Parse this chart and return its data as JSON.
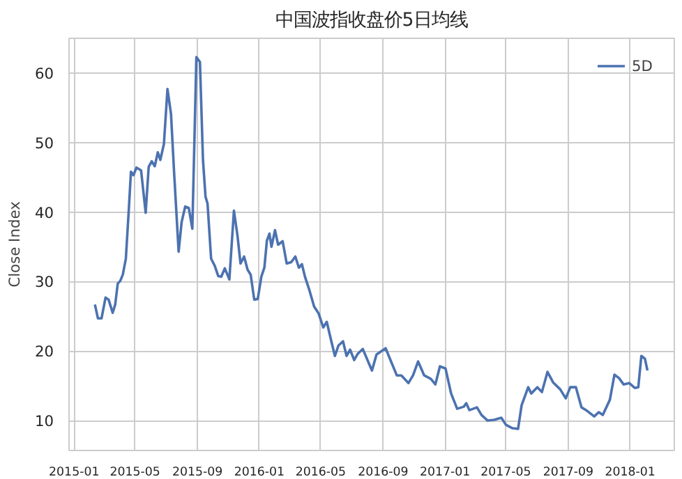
{
  "chart_data": {
    "type": "line",
    "title": "中国波指收盘价5日均线",
    "ylabel": "Close Index",
    "x": [
      "2015-02-11",
      "2015-02-17",
      "2015-02-24",
      "2015-03-04",
      "2015-03-10",
      "2015-03-18",
      "2015-03-23",
      "2015-03-28",
      "2015-04-02",
      "2015-04-07",
      "2015-04-13",
      "2015-04-19",
      "2015-04-23",
      "2015-04-28",
      "2015-05-04",
      "2015-05-13",
      "2015-05-22",
      "2015-05-28",
      "2015-06-03",
      "2015-06-09",
      "2015-06-15",
      "2015-06-20",
      "2015-06-27",
      "2015-07-04",
      "2015-07-11",
      "2015-07-17",
      "2015-07-26",
      "2015-08-01",
      "2015-08-08",
      "2015-08-15",
      "2015-08-22",
      "2015-08-30",
      "2015-09-06",
      "2015-09-12",
      "2015-09-17",
      "2015-09-21",
      "2015-09-28",
      "2015-10-05",
      "2015-10-12",
      "2015-10-18",
      "2015-10-25",
      "2015-11-03",
      "2015-11-12",
      "2015-11-19",
      "2015-11-25",
      "2015-12-02",
      "2015-12-09",
      "2015-12-15",
      "2015-12-22",
      "2015-12-29",
      "2016-01-05",
      "2016-01-11",
      "2016-01-16",
      "2016-01-21",
      "2016-01-25",
      "2016-02-01",
      "2016-02-07",
      "2016-02-16",
      "2016-02-24",
      "2016-03-04",
      "2016-03-12",
      "2016-03-19",
      "2016-03-25",
      "2016-03-31",
      "2016-04-09",
      "2016-04-18",
      "2016-04-27",
      "2016-05-06",
      "2016-05-13",
      "2016-05-22",
      "2016-05-29",
      "2016-06-05",
      "2016-06-14",
      "2016-06-21",
      "2016-06-28",
      "2016-07-06",
      "2016-07-13",
      "2016-07-23",
      "2016-08-10",
      "2016-08-19",
      "2016-09-06",
      "2016-09-15",
      "2016-09-28",
      "2016-10-07",
      "2016-10-21",
      "2016-10-30",
      "2016-11-09",
      "2016-11-21",
      "2016-12-04",
      "2016-12-13",
      "2016-12-22",
      "2017-01-02",
      "2017-01-13",
      "2017-01-25",
      "2017-02-07",
      "2017-02-12",
      "2017-02-18",
      "2017-03-05",
      "2017-03-14",
      "2017-03-26",
      "2017-04-08",
      "2017-04-22",
      "2017-05-01",
      "2017-05-14",
      "2017-05-25",
      "2017-06-01",
      "2017-06-14",
      "2017-06-20",
      "2017-07-02",
      "2017-07-11",
      "2017-07-22",
      "2017-08-02",
      "2017-08-16",
      "2017-08-27",
      "2017-09-05",
      "2017-09-16",
      "2017-09-27",
      "2017-10-08",
      "2017-10-22",
      "2017-10-31",
      "2017-11-08",
      "2017-11-22",
      "2017-12-01",
      "2017-12-10",
      "2017-12-19",
      "2017-12-30",
      "2018-01-10",
      "2018-01-17",
      "2018-01-23",
      "2018-01-30",
      "2018-02-04"
    ],
    "series": [
      {
        "name": "5D",
        "color": "#4c72b0",
        "values": [
          26.7,
          24.7,
          24.7,
          27.7,
          27.4,
          25.5,
          26.7,
          29.7,
          30.1,
          31.0,
          33.3,
          40.6,
          45.8,
          45.3,
          46.4,
          46.0,
          39.9,
          46.5,
          47.3,
          46.6,
          48.6,
          47.5,
          49.8,
          57.7,
          54.1,
          45.8,
          34.3,
          38.6,
          40.8,
          40.6,
          37.6,
          62.3,
          61.6,
          47.5,
          42.2,
          41.2,
          33.3,
          32.3,
          30.8,
          30.7,
          31.9,
          30.3,
          40.2,
          36.6,
          32.6,
          33.6,
          31.7,
          31.0,
          27.4,
          27.5,
          30.7,
          32.0,
          35.9,
          36.9,
          35.0,
          37.4,
          35.3,
          35.8,
          32.6,
          32.8,
          33.6,
          32.0,
          32.5,
          30.7,
          28.7,
          26.4,
          25.4,
          23.4,
          24.2,
          21.4,
          19.3,
          20.8,
          21.4,
          19.3,
          20.2,
          18.7,
          19.6,
          20.3,
          17.2,
          19.5,
          20.4,
          18.8,
          16.5,
          16.5,
          15.4,
          16.5,
          18.5,
          16.5,
          16.0,
          15.2,
          17.8,
          17.5,
          13.9,
          11.7,
          12.0,
          12.5,
          11.5,
          11.9,
          10.8,
          10.0,
          10.1,
          10.4,
          9.4,
          8.9,
          8.8,
          12.2,
          14.8,
          13.9,
          14.8,
          14.1,
          17.0,
          15.5,
          14.5,
          13.2,
          14.8,
          14.8,
          11.9,
          11.4,
          10.6,
          11.2,
          10.8,
          13.0,
          16.6,
          16.1,
          15.2,
          15.4,
          14.7,
          14.8,
          19.3,
          18.9,
          17.2
        ]
      }
    ],
    "xlim": [
      "2014-12-22",
      "2018-03-29"
    ],
    "xticks": [
      "2015-01",
      "2015-05",
      "2015-09",
      "2016-01",
      "2016-05",
      "2016-09",
      "2017-01",
      "2017-05",
      "2017-09",
      "2018-01"
    ],
    "ylim": [
      5.7,
      65
    ],
    "yticks": [
      10,
      20,
      30,
      40,
      50,
      60
    ],
    "grid": true,
    "legend": "top right",
    "line_style": "solid",
    "marker": "none"
  }
}
